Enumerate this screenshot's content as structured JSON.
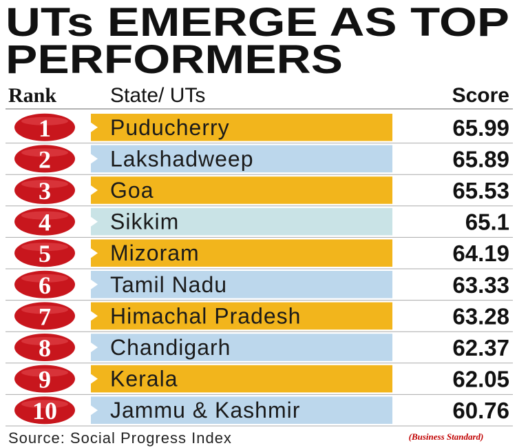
{
  "header": {
    "title_lines": [
      "UTs EMERGE AS TOP",
      "PERFORMERS"
    ]
  },
  "table": {
    "columns": [
      "Rank",
      "State/ UTs",
      "Score"
    ],
    "rows": [
      [
        "1",
        "Puducherry",
        "65.99"
      ],
      [
        "2",
        "Lakshadweep",
        "65.89"
      ],
      [
        "3",
        "Goa",
        "65.53"
      ],
      [
        "4",
        "Sikkim",
        "65.1"
      ],
      [
        "5",
        "Mizoram",
        "64.19"
      ],
      [
        "6",
        "Tamil Nadu",
        "63.33"
      ],
      [
        "7",
        "Himachal Pradesh",
        "63.28"
      ],
      [
        "8",
        "Chandigarh",
        "62.37"
      ],
      [
        "9",
        "Kerala",
        "62.05"
      ],
      [
        "10",
        "Jammu & Kashmir",
        "60.76"
      ]
    ]
  },
  "footer": {
    "source": "Source: Social Progress Index",
    "credit": "(Business Standard)"
  }
}
